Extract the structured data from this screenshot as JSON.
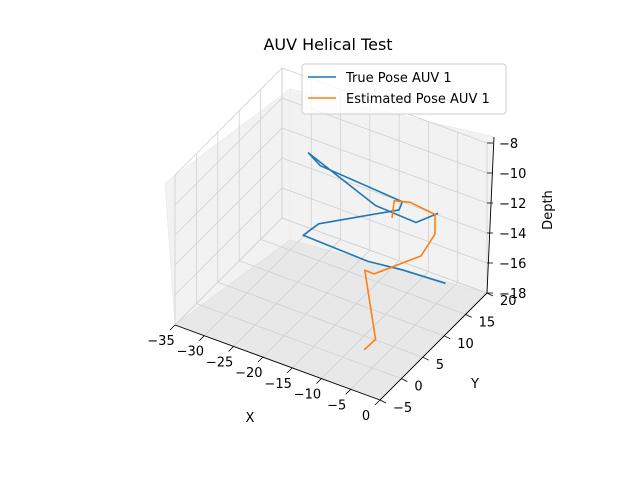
{
  "chart_data": {
    "type": "line3d",
    "title": "AUV Helical Test",
    "xlabel": "X",
    "ylabel": "Y",
    "zlabel": "Depth",
    "xlim": [
      -35,
      0
    ],
    "ylim": [
      -5,
      20
    ],
    "zlim": [
      -18,
      -8
    ],
    "x_ticks": [
      "−35",
      "−30",
      "−25",
      "−20",
      "−15",
      "−10",
      "−5",
      "0"
    ],
    "y_ticks": [
      "−5",
      "0",
      "5",
      "10",
      "15",
      "20"
    ],
    "z_ticks": [
      "−18",
      "−16",
      "−14",
      "−12",
      "−10",
      "−8"
    ],
    "grid": true,
    "legend_position": "top-right",
    "series": [
      {
        "name": "True Pose AUV 1",
        "color": "#1f77b4",
        "x": [
          -4.9,
          -9.0,
          -13.0,
          -27.0,
          -28.0,
          -15.0,
          -13.0,
          -27.0,
          -25.0,
          -11.0,
          -7.0,
          -6.5
        ],
        "y": [
          17.0,
          12.5,
          10.0,
          14.0,
          19.0,
          20.0,
          18.0,
          18.0,
          12.5,
          9.0,
          13.0,
          17.5
        ],
        "z": [
          -17.2,
          -15.6,
          -14.9,
          -16.3,
          -17.1,
          -14.6,
          -13.2,
          -12.8,
          -10.1,
          -10.6,
          -12.3,
          -12.9
        ]
      },
      {
        "name": "Estimated Pose AUV 1",
        "color": "#ff7f0e",
        "x": [
          -6.0,
          -5.5,
          -11.0,
          -10.5,
          -6.5,
          -4.5,
          -4.5,
          -8.0,
          -10.0,
          -10.0
        ],
        "y": [
          -0.5,
          1.5,
          6.5,
          8.0,
          13.5,
          14.0,
          14.0,
          13.0,
          12.0,
          11.5
        ],
        "z": [
          -16.8,
          -16.6,
          -14.2,
          -14.8,
          -14.6,
          -13.0,
          -11.7,
          -11.1,
          -11.0,
          -12.0
        ]
      }
    ]
  }
}
